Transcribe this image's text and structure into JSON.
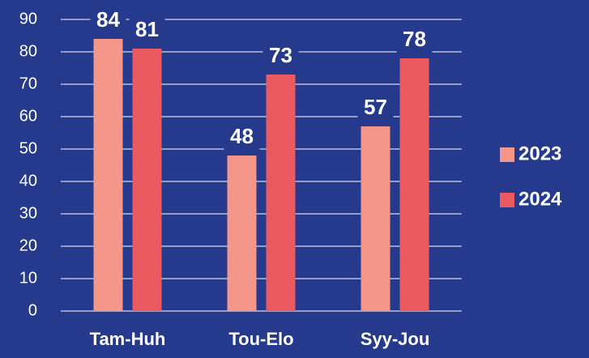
{
  "chart_data": {
    "type": "bar",
    "categories": [
      "Tam-Huh",
      "Tou-Elo",
      "Syy-Jou"
    ],
    "series": [
      {
        "name": "2023",
        "color": "#f4968a",
        "values": [
          84,
          48,
          57
        ]
      },
      {
        "name": "2024",
        "color": "#eb5a60",
        "values": [
          81,
          73,
          78
        ]
      }
    ],
    "ylim": [
      0,
      90
    ],
    "yticks": [
      0,
      10,
      20,
      30,
      40,
      50,
      60,
      70,
      80,
      90
    ],
    "grid": true,
    "legend": "right"
  }
}
